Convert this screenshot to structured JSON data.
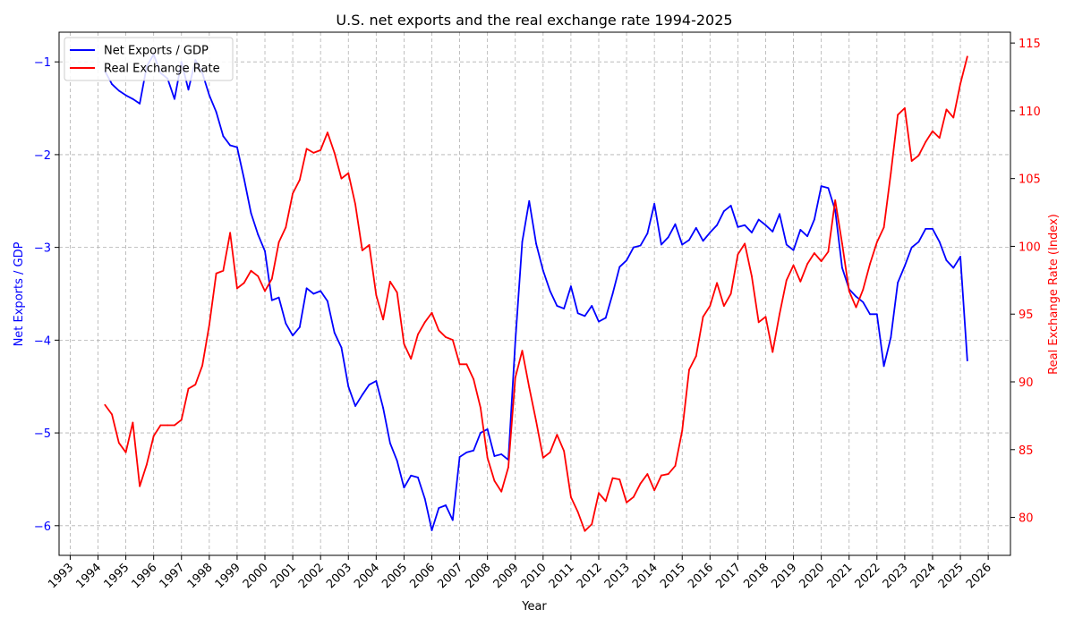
{
  "chart_data": {
    "type": "line",
    "title": "U.S. net exports and the real exchange rate 1994-2025",
    "xlabel": "Year",
    "ylabel_left": "Net Exports / GDP",
    "ylabel_right": "Real Exchange Rate (Index)",
    "xlim": [
      1992.6,
      2026.8
    ],
    "ylim_left": [
      -6.32,
      -0.68
    ],
    "ylim_right": [
      77.2,
      115.8
    ],
    "x_ticks": [
      "1993",
      "1994",
      "1995",
      "1996",
      "1997",
      "1998",
      "1999",
      "2000",
      "2001",
      "2002",
      "2003",
      "2004",
      "2005",
      "2006",
      "2007",
      "2008",
      "2009",
      "2010",
      "2011",
      "2012",
      "2013",
      "2014",
      "2015",
      "2016",
      "2017",
      "2018",
      "2019",
      "2020",
      "2021",
      "2022",
      "2023",
      "2024",
      "2025",
      "2026"
    ],
    "y_ticks_left": [
      "-6",
      "-5",
      "-4",
      "-3",
      "-2",
      "-1"
    ],
    "y_ticks_right": [
      "80",
      "85",
      "90",
      "95",
      "100",
      "105",
      "110",
      "115"
    ],
    "grid": true,
    "legend_position": "top-left",
    "colors": {
      "left_axis": "#0000ff",
      "right_axis": "#ff0000"
    },
    "series": [
      {
        "name": "Net Exports / GDP",
        "axis": "left",
        "color": "#0000ff",
        "points": [
          [
            1994.25,
            -1.1
          ],
          [
            1994.5,
            -1.24
          ],
          [
            1994.75,
            -1.31
          ],
          [
            1995.0,
            -1.36
          ],
          [
            1995.25,
            -1.4
          ],
          [
            1995.5,
            -1.45
          ],
          [
            1995.75,
            -1.05
          ],
          [
            1996.0,
            -0.92
          ],
          [
            1996.25,
            -1.12
          ],
          [
            1996.5,
            -1.18
          ],
          [
            1996.75,
            -1.4
          ],
          [
            1997.0,
            -1.0
          ],
          [
            1997.25,
            -1.3
          ],
          [
            1997.5,
            -0.98
          ],
          [
            1997.75,
            -1.12
          ],
          [
            1998.0,
            -1.36
          ],
          [
            1998.25,
            -1.54
          ],
          [
            1998.5,
            -1.8
          ],
          [
            1998.75,
            -1.9
          ],
          [
            1999.0,
            -1.92
          ],
          [
            1999.25,
            -2.26
          ],
          [
            1999.5,
            -2.63
          ],
          [
            1999.75,
            -2.86
          ],
          [
            2000.0,
            -3.04
          ],
          [
            2000.25,
            -3.57
          ],
          [
            2000.5,
            -3.54
          ],
          [
            2000.75,
            -3.82
          ],
          [
            2001.0,
            -3.95
          ],
          [
            2001.25,
            -3.86
          ],
          [
            2001.5,
            -3.44
          ],
          [
            2001.75,
            -3.5
          ],
          [
            2002.0,
            -3.47
          ],
          [
            2002.25,
            -3.58
          ],
          [
            2002.5,
            -3.92
          ],
          [
            2002.75,
            -4.08
          ],
          [
            2003.0,
            -4.5
          ],
          [
            2003.25,
            -4.71
          ],
          [
            2003.5,
            -4.59
          ],
          [
            2003.75,
            -4.48
          ],
          [
            2004.0,
            -4.44
          ],
          [
            2004.25,
            -4.73
          ],
          [
            2004.5,
            -5.11
          ],
          [
            2004.75,
            -5.3
          ],
          [
            2005.0,
            -5.59
          ],
          [
            2005.25,
            -5.46
          ],
          [
            2005.5,
            -5.48
          ],
          [
            2005.75,
            -5.71
          ],
          [
            2006.0,
            -6.05
          ],
          [
            2006.25,
            -5.81
          ],
          [
            2006.5,
            -5.78
          ],
          [
            2006.75,
            -5.94
          ],
          [
            2007.0,
            -5.26
          ],
          [
            2007.25,
            -5.21
          ],
          [
            2007.5,
            -5.19
          ],
          [
            2007.75,
            -5.0
          ],
          [
            2008.0,
            -4.96
          ],
          [
            2008.25,
            -5.25
          ],
          [
            2008.5,
            -5.23
          ],
          [
            2008.75,
            -5.29
          ],
          [
            2009.0,
            -4.02
          ],
          [
            2009.25,
            -2.94
          ],
          [
            2009.5,
            -2.5
          ],
          [
            2009.75,
            -2.96
          ],
          [
            2010.0,
            -3.25
          ],
          [
            2010.25,
            -3.47
          ],
          [
            2010.5,
            -3.63
          ],
          [
            2010.75,
            -3.66
          ],
          [
            2011.0,
            -3.42
          ],
          [
            2011.25,
            -3.71
          ],
          [
            2011.5,
            -3.74
          ],
          [
            2011.75,
            -3.63
          ],
          [
            2012.0,
            -3.8
          ],
          [
            2012.25,
            -3.76
          ],
          [
            2012.5,
            -3.5
          ],
          [
            2012.75,
            -3.21
          ],
          [
            2013.0,
            -3.14
          ],
          [
            2013.25,
            -3.0
          ],
          [
            2013.5,
            -2.98
          ],
          [
            2013.75,
            -2.85
          ],
          [
            2014.0,
            -2.53
          ],
          [
            2014.25,
            -2.97
          ],
          [
            2014.5,
            -2.89
          ],
          [
            2014.75,
            -2.75
          ],
          [
            2015.0,
            -2.97
          ],
          [
            2015.25,
            -2.92
          ],
          [
            2015.5,
            -2.79
          ],
          [
            2015.75,
            -2.93
          ],
          [
            2016.0,
            -2.84
          ],
          [
            2016.25,
            -2.76
          ],
          [
            2016.5,
            -2.61
          ],
          [
            2016.75,
            -2.55
          ],
          [
            2017.0,
            -2.78
          ],
          [
            2017.25,
            -2.76
          ],
          [
            2017.5,
            -2.84
          ],
          [
            2017.75,
            -2.7
          ],
          [
            2018.0,
            -2.76
          ],
          [
            2018.25,
            -2.83
          ],
          [
            2018.5,
            -2.64
          ],
          [
            2018.75,
            -2.97
          ],
          [
            2019.0,
            -3.03
          ],
          [
            2019.25,
            -2.81
          ],
          [
            2019.5,
            -2.88
          ],
          [
            2019.75,
            -2.7
          ],
          [
            2020.0,
            -2.34
          ],
          [
            2020.25,
            -2.36
          ],
          [
            2020.5,
            -2.6
          ],
          [
            2020.75,
            -3.22
          ],
          [
            2021.0,
            -3.45
          ],
          [
            2021.25,
            -3.53
          ],
          [
            2021.5,
            -3.59
          ],
          [
            2021.75,
            -3.72
          ],
          [
            2022.0,
            -3.72
          ],
          [
            2022.25,
            -4.28
          ],
          [
            2022.5,
            -3.97
          ],
          [
            2022.75,
            -3.38
          ],
          [
            2023.0,
            -3.2
          ],
          [
            2023.25,
            -3.0
          ],
          [
            2023.5,
            -2.94
          ],
          [
            2023.75,
            -2.8
          ],
          [
            2024.0,
            -2.8
          ],
          [
            2024.25,
            -2.94
          ],
          [
            2024.5,
            -3.14
          ],
          [
            2024.75,
            -3.22
          ],
          [
            2025.0,
            -3.1
          ],
          [
            2025.25,
            -4.22
          ]
        ]
      },
      {
        "name": "Real Exchange Rate",
        "axis": "right",
        "color": "#ff0000",
        "points": [
          [
            1994.25,
            88.3
          ],
          [
            1994.5,
            87.6
          ],
          [
            1994.75,
            85.5
          ],
          [
            1995.0,
            84.8
          ],
          [
            1995.25,
            87.0
          ],
          [
            1995.5,
            82.3
          ],
          [
            1995.75,
            83.9
          ],
          [
            1996.0,
            86.0
          ],
          [
            1996.25,
            86.8
          ],
          [
            1996.5,
            86.8
          ],
          [
            1996.75,
            86.8
          ],
          [
            1997.0,
            87.2
          ],
          [
            1997.25,
            89.5
          ],
          [
            1997.5,
            89.8
          ],
          [
            1997.75,
            91.2
          ],
          [
            1998.0,
            94.2
          ],
          [
            1998.25,
            98.0
          ],
          [
            1998.5,
            98.2
          ],
          [
            1998.75,
            101.0
          ],
          [
            1999.0,
            96.9
          ],
          [
            1999.25,
            97.3
          ],
          [
            1999.5,
            98.2
          ],
          [
            1999.75,
            97.8
          ],
          [
            2000.0,
            96.7
          ],
          [
            2000.25,
            97.6
          ],
          [
            2000.5,
            100.3
          ],
          [
            2000.75,
            101.4
          ],
          [
            2001.0,
            103.9
          ],
          [
            2001.25,
            104.9
          ],
          [
            2001.5,
            107.2
          ],
          [
            2001.75,
            106.9
          ],
          [
            2002.0,
            107.1
          ],
          [
            2002.25,
            108.4
          ],
          [
            2002.5,
            106.9
          ],
          [
            2002.75,
            105.0
          ],
          [
            2003.0,
            105.4
          ],
          [
            2003.25,
            103.1
          ],
          [
            2003.5,
            99.7
          ],
          [
            2003.75,
            100.1
          ],
          [
            2004.0,
            96.4
          ],
          [
            2004.25,
            94.6
          ],
          [
            2004.5,
            97.4
          ],
          [
            2004.75,
            96.6
          ],
          [
            2005.0,
            92.8
          ],
          [
            2005.25,
            91.7
          ],
          [
            2005.5,
            93.5
          ],
          [
            2005.75,
            94.4
          ],
          [
            2006.0,
            95.1
          ],
          [
            2006.25,
            93.8
          ],
          [
            2006.5,
            93.3
          ],
          [
            2006.75,
            93.1
          ],
          [
            2007.0,
            91.3
          ],
          [
            2007.25,
            91.3
          ],
          [
            2007.5,
            90.2
          ],
          [
            2007.75,
            88.1
          ],
          [
            2008.0,
            84.4
          ],
          [
            2008.25,
            82.7
          ],
          [
            2008.5,
            81.9
          ],
          [
            2008.75,
            83.7
          ],
          [
            2009.0,
            90.3
          ],
          [
            2009.25,
            92.3
          ],
          [
            2009.5,
            89.6
          ],
          [
            2009.75,
            87.1
          ],
          [
            2010.0,
            84.4
          ],
          [
            2010.25,
            84.8
          ],
          [
            2010.5,
            86.1
          ],
          [
            2010.75,
            84.9
          ],
          [
            2011.0,
            81.5
          ],
          [
            2011.25,
            80.4
          ],
          [
            2011.5,
            79.0
          ],
          [
            2011.75,
            79.5
          ],
          [
            2012.0,
            81.8
          ],
          [
            2012.25,
            81.2
          ],
          [
            2012.5,
            82.9
          ],
          [
            2012.75,
            82.8
          ],
          [
            2013.0,
            81.1
          ],
          [
            2013.25,
            81.5
          ],
          [
            2013.5,
            82.5
          ],
          [
            2013.75,
            83.2
          ],
          [
            2014.0,
            82.0
          ],
          [
            2014.25,
            83.1
          ],
          [
            2014.5,
            83.2
          ],
          [
            2014.75,
            83.8
          ],
          [
            2015.0,
            86.4
          ],
          [
            2015.25,
            90.9
          ],
          [
            2015.5,
            91.9
          ],
          [
            2015.75,
            94.8
          ],
          [
            2016.0,
            95.6
          ],
          [
            2016.25,
            97.3
          ],
          [
            2016.5,
            95.6
          ],
          [
            2016.75,
            96.5
          ],
          [
            2017.0,
            99.4
          ],
          [
            2017.25,
            100.2
          ],
          [
            2017.5,
            97.8
          ],
          [
            2017.75,
            94.4
          ],
          [
            2018.0,
            94.8
          ],
          [
            2018.25,
            92.2
          ],
          [
            2018.5,
            95.0
          ],
          [
            2018.75,
            97.5
          ],
          [
            2019.0,
            98.6
          ],
          [
            2019.25,
            97.4
          ],
          [
            2019.5,
            98.7
          ],
          [
            2019.75,
            99.5
          ],
          [
            2020.0,
            98.9
          ],
          [
            2020.25,
            99.6
          ],
          [
            2020.5,
            103.4
          ],
          [
            2020.75,
            100.2
          ],
          [
            2021.0,
            96.7
          ],
          [
            2021.25,
            95.5
          ],
          [
            2021.5,
            96.8
          ],
          [
            2021.75,
            98.7
          ],
          [
            2022.0,
            100.3
          ],
          [
            2022.25,
            101.4
          ],
          [
            2022.5,
            105.4
          ],
          [
            2022.75,
            109.7
          ],
          [
            2023.0,
            110.2
          ],
          [
            2023.25,
            106.3
          ],
          [
            2023.5,
            106.7
          ],
          [
            2023.75,
            107.7
          ],
          [
            2024.0,
            108.5
          ],
          [
            2024.25,
            108.0
          ],
          [
            2024.5,
            110.1
          ],
          [
            2024.75,
            109.5
          ],
          [
            2025.0,
            112.0
          ],
          [
            2025.25,
            114.0
          ]
        ]
      }
    ]
  }
}
